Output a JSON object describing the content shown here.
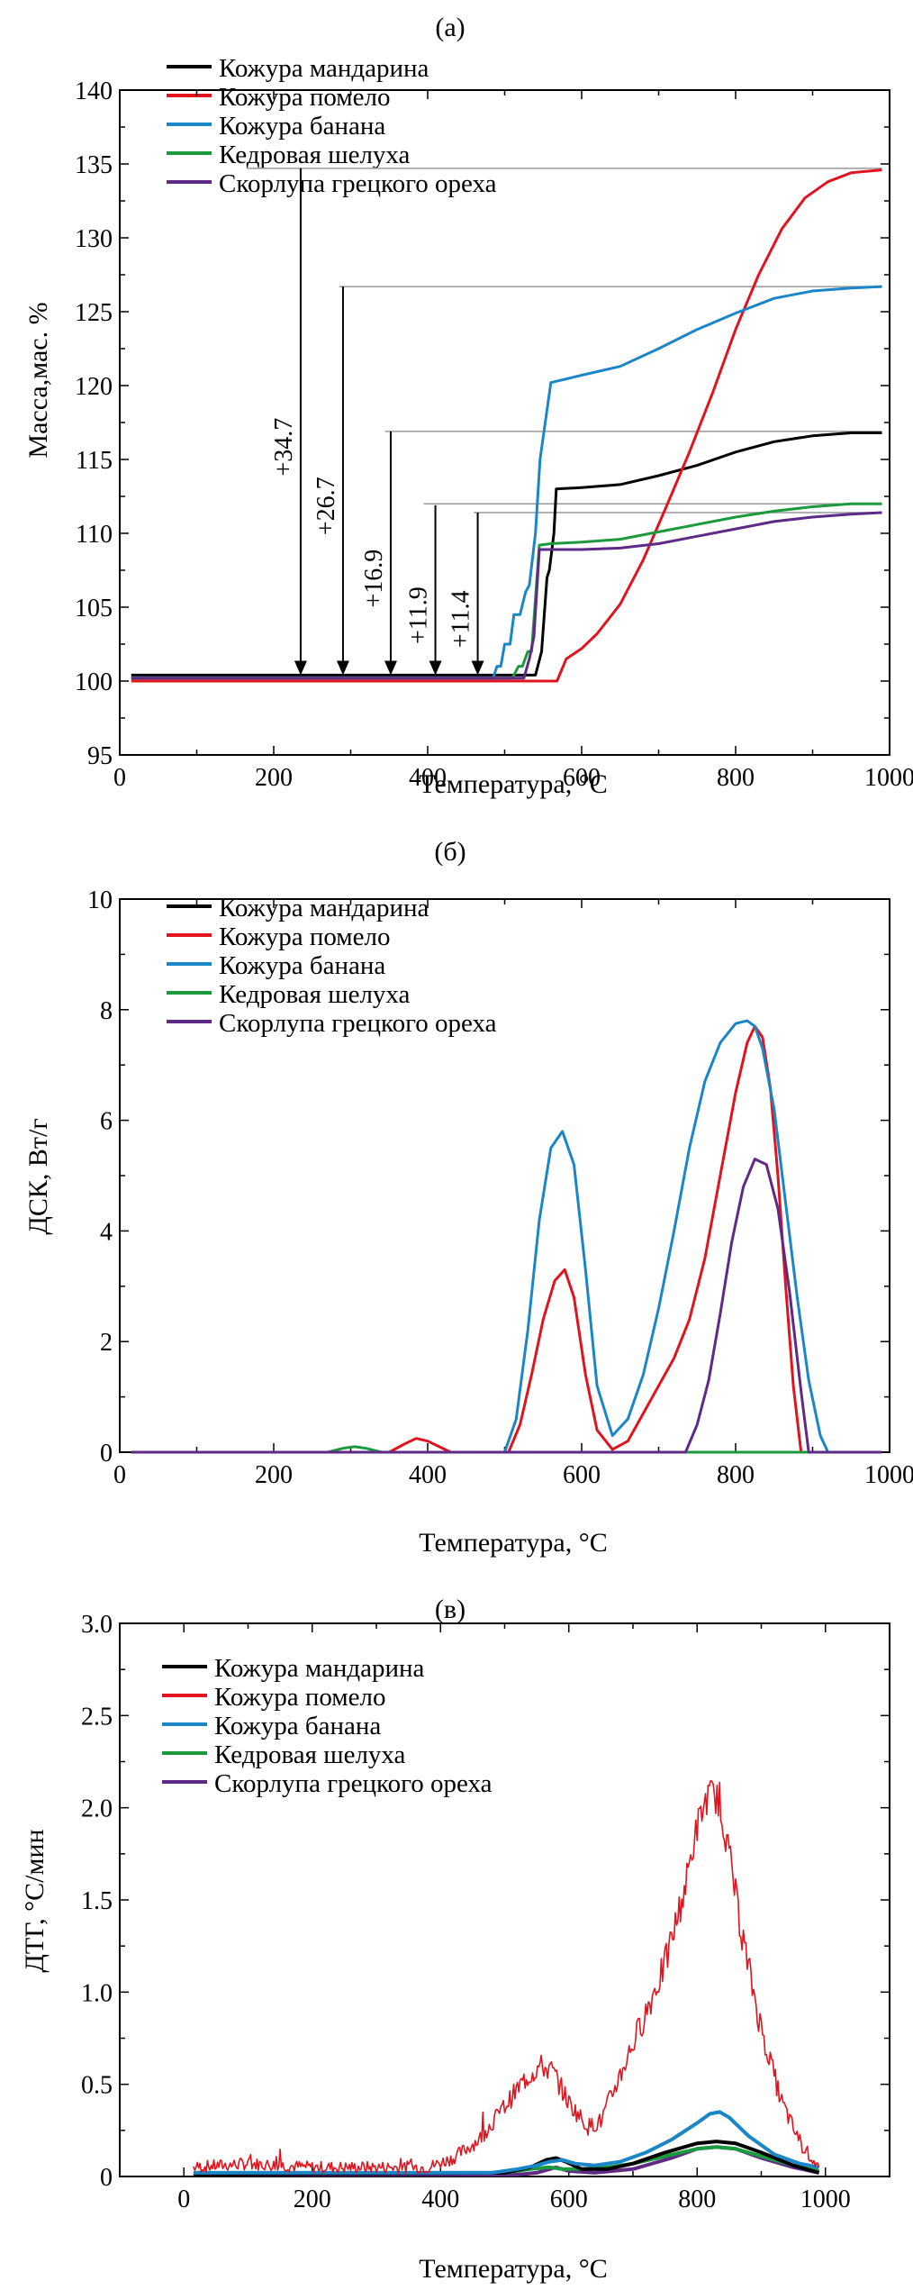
{
  "colors": {
    "mandarin": "#000000",
    "pomelo": "#e0141e",
    "banana": "#1a86c8",
    "cedar": "#1a9a3c",
    "walnut": "#5e2a86",
    "ref": "#999999"
  },
  "legend": [
    {
      "key": "mandarin",
      "label": "Кожура мандарина"
    },
    {
      "key": "pomelo",
      "label": "Кожура помело"
    },
    {
      "key": "banana",
      "label": "Кожура банана"
    },
    {
      "key": "cedar",
      "label": "Кедровая шелуха"
    },
    {
      "key": "walnut",
      "label": "Скорлупа грецкого ореха"
    }
  ],
  "chart_data": [
    {
      "panel": "a",
      "type": "line",
      "title": "(а)",
      "xlabel": "Температура, °C",
      "ylabel": "Масса,мас. %",
      "xlim": [
        0,
        1000
      ],
      "ylim": [
        95,
        140
      ],
      "xticks": [
        0,
        200,
        400,
        600,
        800,
        1000
      ],
      "yticks": [
        95,
        100,
        105,
        110,
        115,
        120,
        125,
        130,
        135,
        140
      ],
      "series": [
        {
          "key": "mandarin",
          "name": "Кожура мандарина",
          "x": [
            15,
            540,
            548,
            555,
            558,
            564,
            567,
            600,
            650,
            700,
            750,
            800,
            850,
            900,
            950,
            990
          ],
          "y": [
            100.4,
            100.4,
            102,
            107,
            107.5,
            110,
            113,
            113.1,
            113.3,
            113.9,
            114.6,
            115.5,
            116.2,
            116.6,
            116.8,
            116.8
          ]
        },
        {
          "key": "pomelo",
          "name": "Кожура помело",
          "x": [
            15,
            568,
            580,
            600,
            620,
            650,
            680,
            710,
            740,
            770,
            800,
            830,
            860,
            890,
            920,
            950,
            990
          ],
          "y": [
            100,
            100,
            101.5,
            102.2,
            103.2,
            105.2,
            108.2,
            111.8,
            115.5,
            119.5,
            123.8,
            127.5,
            130.6,
            132.7,
            133.8,
            134.4,
            134.6
          ]
        },
        {
          "key": "banana",
          "name": "Кожура банана",
          "x": [
            15,
            485,
            490,
            495,
            500,
            507,
            512,
            520,
            527,
            532,
            540,
            546,
            560,
            600,
            650,
            700,
            750,
            800,
            850,
            900,
            950,
            990
          ],
          "y": [
            100.2,
            100.2,
            101,
            101,
            102.5,
            102.5,
            104.5,
            104.5,
            106,
            106.5,
            110,
            115,
            120.2,
            120.7,
            121.3,
            122.5,
            123.8,
            124.9,
            125.9,
            126.4,
            126.6,
            126.7
          ]
        },
        {
          "key": "cedar",
          "name": "Кедровая шелуха",
          "x": [
            15,
            510,
            518,
            523,
            530,
            535,
            545,
            560,
            600,
            650,
            700,
            750,
            800,
            850,
            900,
            950,
            990
          ],
          "y": [
            100.2,
            100.2,
            101,
            101,
            102,
            102,
            109.2,
            109.3,
            109.4,
            109.6,
            110.1,
            110.6,
            111.1,
            111.5,
            111.8,
            112,
            112
          ]
        },
        {
          "key": "walnut",
          "name": "Скорлупа грецкого ореха",
          "x": [
            15,
            525,
            532,
            538,
            545,
            560,
            600,
            650,
            700,
            750,
            800,
            850,
            900,
            950,
            990
          ],
          "y": [
            100.2,
            100.2,
            101.5,
            103,
            108.9,
            108.9,
            108.9,
            109,
            109.3,
            109.8,
            110.3,
            110.8,
            111.1,
            111.3,
            111.4
          ]
        }
      ],
      "annotations": [
        {
          "label": "+34.7",
          "x": 235,
          "y_top": 134.7
        },
        {
          "label": "+26.7",
          "x": 290,
          "y_top": 126.7
        },
        {
          "label": "+16.9",
          "x": 352,
          "y_top": 116.9
        },
        {
          "label": "+11.9",
          "x": 410,
          "y_top": 111.9
        },
        {
          "label": "+11.4",
          "x": 465,
          "y_top": 111.4
        }
      ],
      "ref_lines": [
        {
          "y": 134.7,
          "x_from": 165,
          "x_to": 990
        },
        {
          "y": 126.7,
          "x_from": 285,
          "x_to": 990
        },
        {
          "y": 116.9,
          "x_from": 345,
          "x_to": 990
        },
        {
          "y": 112.0,
          "x_from": 395,
          "x_to": 990
        },
        {
          "y": 111.4,
          "x_from": 460,
          "x_to": 990
        }
      ],
      "arrow_base": 100.4
    },
    {
      "panel": "b",
      "type": "line",
      "title": "(б)",
      "xlabel": "Температура, °C",
      "ylabel": "ДСК, Вт/г",
      "xlim": [
        0,
        1000
      ],
      "ylim": [
        0,
        10
      ],
      "xticks": [
        0,
        200,
        400,
        600,
        800,
        1000
      ],
      "yticks": [
        0,
        2,
        4,
        6,
        8,
        10
      ],
      "series": [
        {
          "key": "mandarin",
          "name": "Кожура мандарина",
          "x": [
            15,
            990
          ],
          "y": [
            0,
            0
          ]
        },
        {
          "key": "pomelo",
          "name": "Кожура помело",
          "x": [
            15,
            350,
            370,
            385,
            400,
            415,
            430,
            505,
            520,
            535,
            550,
            565,
            578,
            590,
            605,
            620,
            640,
            660,
            680,
            700,
            720,
            740,
            760,
            780,
            800,
            815,
            825,
            835,
            845,
            855,
            865,
            875,
            885,
            990
          ],
          "y": [
            0,
            0,
            0.15,
            0.25,
            0.2,
            0.1,
            0,
            0,
            0.5,
            1.4,
            2.4,
            3.1,
            3.3,
            2.8,
            1.4,
            0.4,
            0.05,
            0.2,
            0.7,
            1.2,
            1.7,
            2.4,
            3.5,
            5.0,
            6.5,
            7.4,
            7.7,
            7.5,
            6.6,
            5.0,
            3.0,
            1.2,
            0,
            0
          ]
        },
        {
          "key": "banana",
          "name": "Кожура банана",
          "x": [
            15,
            500,
            515,
            530,
            545,
            560,
            575,
            590,
            605,
            620,
            640,
            660,
            680,
            700,
            720,
            740,
            760,
            780,
            800,
            815,
            825,
            835,
            850,
            865,
            880,
            895,
            910,
            920,
            990
          ],
          "y": [
            0,
            0,
            0.6,
            2.2,
            4.2,
            5.5,
            5.8,
            5.2,
            3.3,
            1.2,
            0.3,
            0.6,
            1.4,
            2.6,
            4.0,
            5.5,
            6.7,
            7.4,
            7.75,
            7.8,
            7.7,
            7.3,
            6.2,
            4.5,
            2.8,
            1.3,
            0.3,
            0,
            0
          ]
        },
        {
          "key": "cedar",
          "name": "Кедровая шелуха",
          "x": [
            15,
            270,
            290,
            305,
            320,
            340,
            990
          ],
          "y": [
            0,
            0,
            0.07,
            0.1,
            0.07,
            0,
            0
          ]
        },
        {
          "key": "walnut",
          "name": "Скорлупа грецкого ореха",
          "x": [
            15,
            735,
            750,
            765,
            780,
            795,
            810,
            825,
            840,
            855,
            870,
            885,
            895,
            990
          ],
          "y": [
            0,
            0,
            0.5,
            1.3,
            2.5,
            3.8,
            4.8,
            5.3,
            5.2,
            4.4,
            2.9,
            1.1,
            0,
            0
          ]
        }
      ]
    },
    {
      "panel": "c",
      "type": "line",
      "title": "(в)",
      "xlabel": "Температура, °C",
      "ylabel": "ДТГ, °C/мин",
      "xlim": [
        -100,
        1100
      ],
      "ylim": [
        0,
        3.0
      ],
      "xticks": [
        0,
        200,
        400,
        600,
        800,
        1000
      ],
      "yticks": [
        0,
        0.5,
        1.0,
        1.5,
        2.0,
        2.5,
        3.0
      ],
      "ytick_labels": [
        "0",
        "0.5",
        "1.0",
        "1.5",
        "2.0",
        "2.5",
        "3.0"
      ],
      "series": [
        {
          "key": "walnut",
          "name": "Скорлупа грецкого ореха",
          "x": [
            15,
            520,
            550,
            570,
            580,
            600,
            640,
            700,
            760,
            800,
            830,
            860,
            900,
            950,
            990
          ],
          "y": [
            0.01,
            0.01,
            0.02,
            0.04,
            0.05,
            0.03,
            0.02,
            0.04,
            0.1,
            0.15,
            0.16,
            0.15,
            0.1,
            0.05,
            0.02
          ]
        },
        {
          "key": "cedar",
          "name": "Кедровая шелуха",
          "x": [
            15,
            500,
            540,
            570,
            590,
            620,
            660,
            700,
            750,
            800,
            830,
            860,
            900,
            950,
            990
          ],
          "y": [
            0.02,
            0.02,
            0.04,
            0.05,
            0.04,
            0.04,
            0.05,
            0.07,
            0.11,
            0.15,
            0.16,
            0.15,
            0.11,
            0.06,
            0.03
          ]
        },
        {
          "key": "mandarin",
          "name": "Кожура мандарина",
          "x": [
            15,
            500,
            540,
            565,
            580,
            595,
            620,
            660,
            700,
            750,
            800,
            830,
            860,
            900,
            950,
            990
          ],
          "y": [
            0.01,
            0.02,
            0.05,
            0.09,
            0.1,
            0.08,
            0.04,
            0.04,
            0.07,
            0.13,
            0.18,
            0.19,
            0.18,
            0.13,
            0.06,
            0.02
          ]
        },
        {
          "key": "banana",
          "name": "Кожура банана",
          "x": [
            15,
            480,
            520,
            550,
            570,
            590,
            610,
            640,
            680,
            720,
            760,
            800,
            820,
            835,
            850,
            880,
            920,
            960,
            990
          ],
          "y": [
            0.02,
            0.02,
            0.04,
            0.06,
            0.08,
            0.09,
            0.07,
            0.06,
            0.08,
            0.13,
            0.2,
            0.29,
            0.34,
            0.35,
            0.32,
            0.22,
            0.12,
            0.07,
            0.05
          ]
        },
        {
          "key": "pomelo",
          "name": "Кожура помело",
          "noisy": true,
          "x": [
            15,
            100,
            200,
            300,
            380,
            420,
            460,
            500,
            530,
            555,
            575,
            600,
            630,
            650,
            700,
            750,
            780,
            800,
            815,
            825,
            835,
            850,
            870,
            900,
            930,
            960,
            990
          ],
          "y": [
            0.05,
            0.07,
            0.05,
            0.05,
            0.05,
            0.1,
            0.2,
            0.38,
            0.52,
            0.6,
            0.57,
            0.4,
            0.27,
            0.3,
            0.72,
            1.15,
            1.55,
            1.9,
            2.05,
            2.08,
            2.02,
            1.75,
            1.3,
            0.8,
            0.42,
            0.18,
            0.05
          ]
        }
      ]
    }
  ]
}
